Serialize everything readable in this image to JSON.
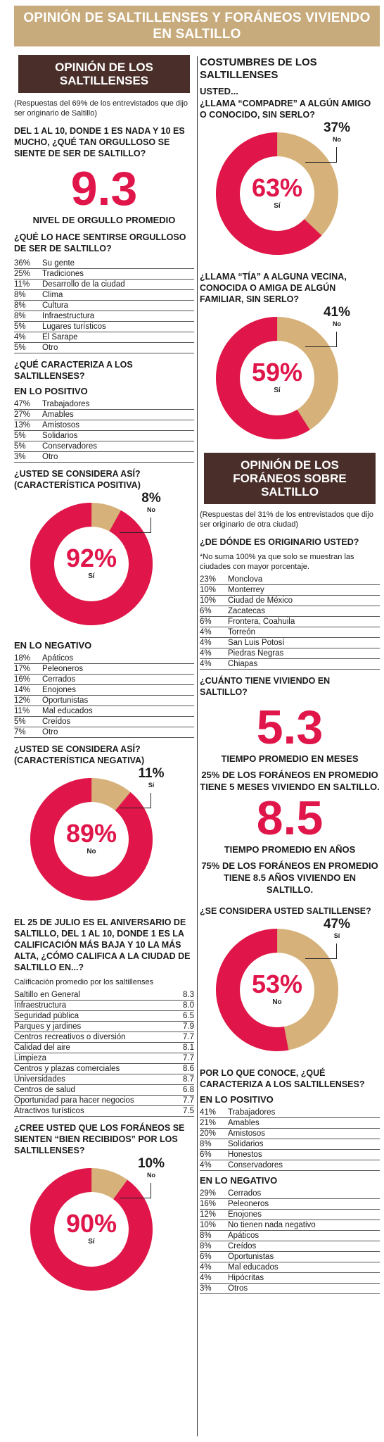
{
  "banner": "OPINIÓN DE SALTILLENSES Y FORÁNEOS VIVIENDO EN SALTILLO",
  "left": {
    "head": "OPINIÓN DE LOS SALTILLENSES",
    "note": "(Respuestas del 69% de los entrevistados que dijo ser originario de Saltillo)",
    "q1": "DEL 1 AL 10, DONDE 1 ES NADA Y 10 ES MUCHO, ¿QUÉ TAN ORGULLOSO SE SIENTE DE SER DE SALTILLO?",
    "pride_value": "9.3",
    "pride_label": "NIVEL DE ORGULLO PROMEDIO",
    "q2": "¿QUÉ LO HACE SENTIRSE ORGULLOSO DE SER DE SALTILLO?",
    "pride_reasons": [
      {
        "p": "36%",
        "l": "Su gente"
      },
      {
        "p": "25%",
        "l": "Tradiciones"
      },
      {
        "p": "11%",
        "l": "Desarrollo de la ciudad"
      },
      {
        "p": "8%",
        "l": "Clima"
      },
      {
        "p": "8%",
        "l": "Cultura"
      },
      {
        "p": "8%",
        "l": "Infraestructura"
      },
      {
        "p": "5%",
        "l": "Lugares turísticos"
      },
      {
        "p": "4%",
        "l": "El Sarape"
      },
      {
        "p": "5%",
        "l": "Otro"
      }
    ],
    "q3": "¿QUÉ CARACTERIZA A LOS SALTILLENSES?",
    "pos_title": "EN LO POSITIVO",
    "positive": [
      {
        "p": "47%",
        "l": "Trabajadores"
      },
      {
        "p": "27%",
        "l": "Amables"
      },
      {
        "p": "13%",
        "l": "Amistosos"
      },
      {
        "p": "5%",
        "l": "Solidarios"
      },
      {
        "p": "5%",
        "l": "Conservadores"
      },
      {
        "p": "3%",
        "l": "Otro"
      }
    ],
    "q4": "¿USTED SE CONSIDERA ASÍ? (CARACTERÍSTICA POSITIVA)",
    "donut1": {
      "main": "92%",
      "main_label": "Sí",
      "other": "8%",
      "other_label": "No"
    },
    "neg_title": "EN LO NEGATIVO",
    "negative": [
      {
        "p": "18%",
        "l": "Apáticos"
      },
      {
        "p": "17%",
        "l": "Peleoneros"
      },
      {
        "p": "16%",
        "l": "Cerrados"
      },
      {
        "p": "14%",
        "l": "Enojones"
      },
      {
        "p": "12%",
        "l": "Oportunistas"
      },
      {
        "p": "11%",
        "l": "Mal educados"
      },
      {
        "p": "5%",
        "l": "Creídos"
      },
      {
        "p": "7%",
        "l": "Otro"
      }
    ],
    "q5": "¿USTED SE CONSIDERA ASÍ? (CARACTERÍSTICA NEGATIVA)",
    "donut2": {
      "main": "89%",
      "main_label": "No",
      "other": "11%",
      "other_label": "Sí"
    },
    "q6": "EL 25 DE JULIO ES EL ANIVERSARIO DE SALTILLO, DEL 1 AL 10, DONDE 1 ES LA CALIFICACIÓN MÁS BAJA Y 10 LA MÁS ALTA, ¿CÓMO CALIFICA A LA CIUDAD DE SALTILLO EN...?",
    "ratings_note": "Calificación promedio por los saltillenses",
    "ratings": [
      {
        "l": "Saltillo en General",
        "v": "8.3"
      },
      {
        "l": "Infraestructura",
        "v": "8.0"
      },
      {
        "l": "Seguridad pública",
        "v": "6.5"
      },
      {
        "l": "Parques y jardines",
        "v": "7.9"
      },
      {
        "l": "Centros recreativos o diversión",
        "v": "7.7"
      },
      {
        "l": "Calidad del aire",
        "v": "8.1"
      },
      {
        "l": "Limpieza",
        "v": "7.7"
      },
      {
        "l": "Centros y plazas comerciales",
        "v": "8.6"
      },
      {
        "l": "Universidades",
        "v": "8.7"
      },
      {
        "l": "Centros de salud",
        "v": "6.8"
      },
      {
        "l": "Oportunidad para hacer negocios",
        "v": "7.7"
      },
      {
        "l": "Atractivos turísticos",
        "v": "7.5"
      }
    ],
    "q7": "¿CREE USTED QUE LOS FORÁNEOS SE SIENTEN “BIEN RECIBIDOS” POR LOS SALTILLENSES?",
    "donut3": {
      "main": "90%",
      "main_label": "Sí",
      "other": "10%",
      "other_label": "No"
    }
  },
  "right": {
    "costumbres": "COSTUMBRES DE LOS SALTILLENSES",
    "usted": "USTED...",
    "q1": "¿LLAMA “COMPADRE” A ALGÚN AMIGO O CONOCIDO, SIN SERLO?",
    "donut1": {
      "main": "63%",
      "main_label": "Sí",
      "other": "37%",
      "other_label": "No"
    },
    "q2": "¿LLAMA “TÍA” A ALGUNA VECINA, CONOCIDA O AMIGA DE ALGÚN FAMILIAR, SIN SERLO?",
    "donut2": {
      "main": "59%",
      "main_label": "Sí",
      "other": "41%",
      "other_label": "No"
    },
    "head": "OPINIÓN DE LOS FORÁNEOS SOBRE SALTILLO",
    "note": "(Respuestas del 31% de los entrevistados que dijo ser originario de otra ciudad)",
    "q3": "¿DE DÓNDE ES ORIGINARIO USTED?",
    "origin_note": "*No suma 100% ya que solo se muestran las ciudades con mayor porcentaje.",
    "origins": [
      {
        "p": "23%",
        "l": "Monclova"
      },
      {
        "p": "10%",
        "l": "Monterrey"
      },
      {
        "p": "10%",
        "l": "Ciudad de México"
      },
      {
        "p": "6%",
        "l": "Zacatecas"
      },
      {
        "p": "6%",
        "l": "Frontera, Coahuila"
      },
      {
        "p": "4%",
        "l": "Torreón"
      },
      {
        "p": "4%",
        "l": "San Luis Potosí"
      },
      {
        "p": "4%",
        "l": "Piedras Negras"
      },
      {
        "p": "4%",
        "l": "Chiapas"
      }
    ],
    "q4": "¿CUÁNTO TIENE VIVIENDO EN SALTILLO?",
    "months_value": "5.3",
    "months_label": "TIEMPO PROMEDIO EN MESES",
    "months_text": "25% DE LOS FORÁNEOS EN PROMEDIO TIENE 5 MESES VIVIENDO EN SALTILLO.",
    "years_value": "8.5",
    "years_label": "TIEMPO PROMEDIO EN AÑOS",
    "years_text": "75% DE LOS FORÁNEOS EN PROMEDIO TIENE 8.5 AÑOS VIVIENDO EN SALTILLO.",
    "q5": "¿SE CONSIDERA USTED SALTILLENSE?",
    "donut3": {
      "main": "53%",
      "main_label": "No",
      "other": "47%",
      "other_label": "Sí"
    },
    "q6": "POR LO QUE CONOCE, ¿QUÉ CARACTERIZA A LOS SALTILLENSES?",
    "pos_title": "EN LO POSITIVO",
    "positive": [
      {
        "p": "41%",
        "l": "Trabajadores"
      },
      {
        "p": "21%",
        "l": "Amables"
      },
      {
        "p": "20%",
        "l": "Amistosos"
      },
      {
        "p": "8%",
        "l": "Solidarios"
      },
      {
        "p": "6%",
        "l": "Honestos"
      },
      {
        "p": "4%",
        "l": "Conservadores"
      }
    ],
    "neg_title": "EN LO NEGATIVO",
    "negative": [
      {
        "p": "29%",
        "l": "Cerrados"
      },
      {
        "p": "16%",
        "l": "Peleoneros"
      },
      {
        "p": "12%",
        "l": "Enojones"
      },
      {
        "p": "10%",
        "l": "No tienen nada negativo"
      },
      {
        "p": "8%",
        "l": "Apáticos"
      },
      {
        "p": "8%",
        "l": "Creídos"
      },
      {
        "p": "6%",
        "l": "Oportunistas"
      },
      {
        "p": "4%",
        "l": "Mal educados"
      },
      {
        "p": "4%",
        "l": "Hipócritas"
      },
      {
        "p": "3%",
        "l": "Otros"
      }
    ]
  },
  "colors": {
    "accent": "#e0154a",
    "beige": "#d6b27a",
    "banner": "#c8ab7c",
    "header": "#4a2e2a"
  }
}
